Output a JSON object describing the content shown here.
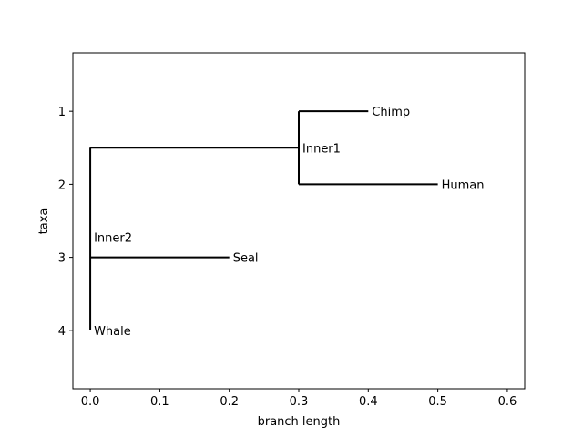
{
  "chart_data": {
    "type": "tree",
    "xlabel": "branch length",
    "ylabel": "taxa",
    "xlim": [
      -0.025,
      0.625
    ],
    "ylim": [
      0.2,
      4.8
    ],
    "x_ticks": [
      "0.0",
      "0.1",
      "0.2",
      "0.3",
      "0.4",
      "0.5",
      "0.6"
    ],
    "x_tick_values": [
      0.0,
      0.1,
      0.2,
      0.3,
      0.4,
      0.5,
      0.6
    ],
    "y_ticks": [
      "1",
      "2",
      "3",
      "4"
    ],
    "y_tick_values": [
      1,
      2,
      3,
      4
    ],
    "line_color": "#000000",
    "nodes": [
      {
        "name": "Inner2",
        "x": 0.0,
        "y": 3.0,
        "type": "internal",
        "children": [
          "Inner1",
          "Seal",
          "Whale"
        ]
      },
      {
        "name": "Inner1",
        "x": 0.3,
        "y": 1.5,
        "type": "internal",
        "children": [
          "Chimp",
          "Human"
        ]
      },
      {
        "name": "Chimp",
        "x": 0.4,
        "y": 1.0,
        "type": "leaf"
      },
      {
        "name": "Human",
        "x": 0.5,
        "y": 2.0,
        "type": "leaf"
      },
      {
        "name": "Seal",
        "x": 0.2,
        "y": 3.0,
        "type": "leaf"
      },
      {
        "name": "Whale",
        "x": 0.0,
        "y": 4.0,
        "type": "leaf"
      }
    ]
  }
}
